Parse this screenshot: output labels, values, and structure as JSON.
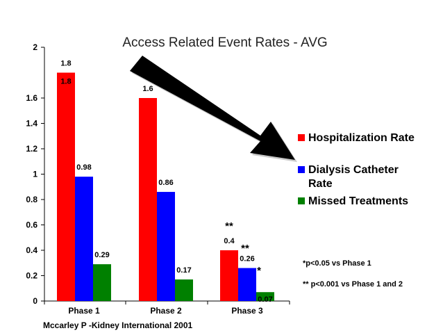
{
  "chart_data": {
    "type": "bar",
    "title": "Access Related Event Rates - AVG",
    "categories": [
      "Phase 1",
      "Phase 2",
      "Phase 3"
    ],
    "series": [
      {
        "name": "Hospitalization Rate",
        "values": [
          1.8,
          1.6,
          0.4
        ],
        "color": "#ff0000",
        "labels": [
          "1.8",
          "1.6",
          "0.4"
        ]
      },
      {
        "name": "Dialysis Catheter Rate",
        "values": [
          0.98,
          0.86,
          0.26
        ],
        "color": "#0000ff",
        "labels": [
          "0.98",
          "0.86",
          "0.26"
        ]
      },
      {
        "name": "Missed Treatments",
        "values": [
          0.29,
          0.17,
          0.07
        ],
        "color": "#008000",
        "labels": [
          "0.29",
          "0.17",
          "0.07"
        ]
      }
    ],
    "y_ticks": [
      "0",
      "0.2",
      "0.4",
      "0.6",
      "0.8",
      "1",
      "1.2",
      "1.4",
      "1.6",
      "2"
    ],
    "y_tick_values": [
      0,
      0.2,
      0.4,
      0.6,
      0.8,
      1,
      1.2,
      1.4,
      1.6,
      2
    ],
    "ylim": [
      0,
      2
    ],
    "legend_position": "right",
    "grid": false,
    "extra_label": "1.8",
    "significance": [
      "**",
      "**",
      "*"
    ],
    "notes": [
      "*p<0.05 vs Phase 1",
      "** p<0.001 vs Phase 1 and 2"
    ],
    "source": "Mccarley P -Kidney International 2001"
  }
}
